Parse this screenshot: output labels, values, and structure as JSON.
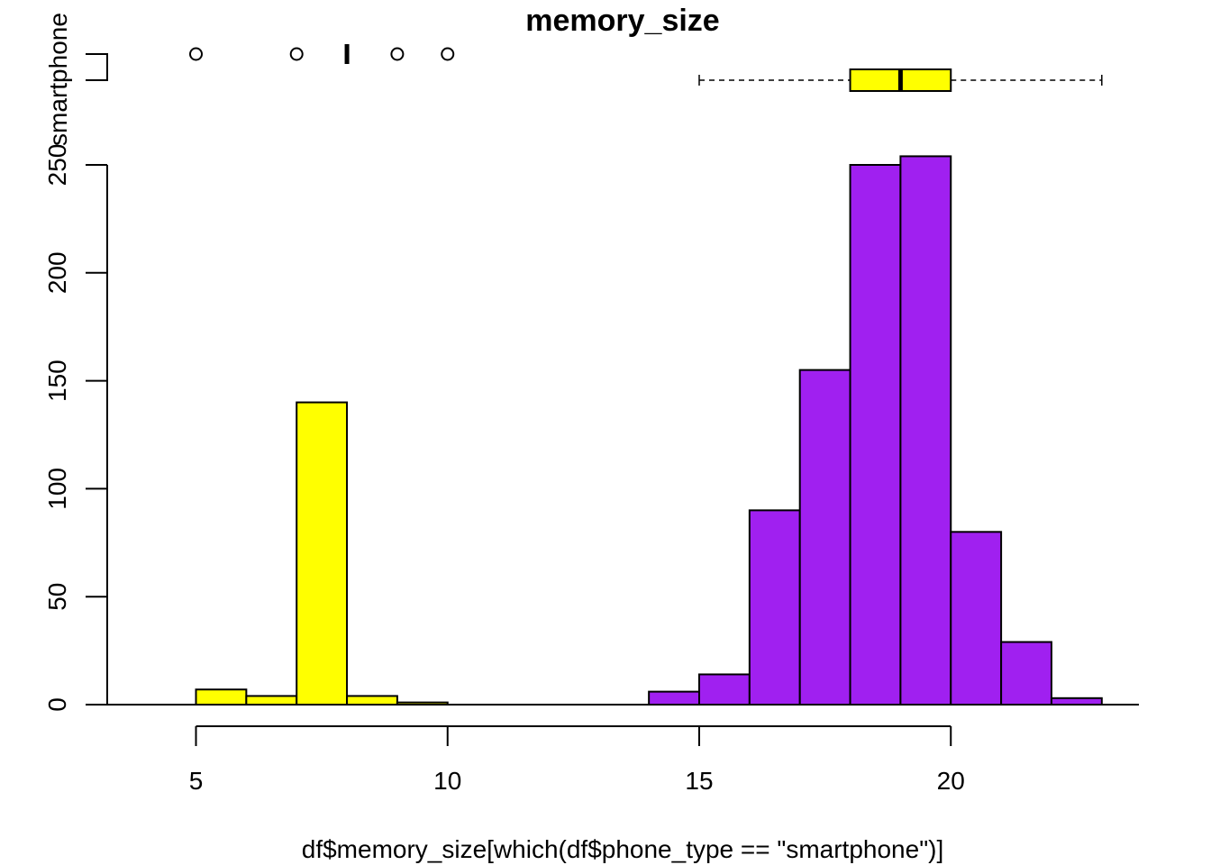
{
  "chart_data": {
    "type": "histogram",
    "title": "memory_size",
    "xlabel": "df$memory_size[which(df$phone_type == \"smartphone\")]",
    "ylabel": "",
    "xlim": [
      5,
      23
    ],
    "ylim": [
      0,
      250
    ],
    "x_ticks": [
      5,
      10,
      15,
      20
    ],
    "y_ticks": [
      0,
      50,
      100,
      150,
      200,
      250
    ],
    "group_label": "smartphone",
    "grid": false,
    "colors": {
      "low_group": "#FFFF00",
      "high_group": "#A020F0",
      "outline": "#000000",
      "box_fill": "#FFFF00"
    },
    "series": [
      {
        "color": "#FFFF00",
        "bins": [
          {
            "x0": 5,
            "x1": 6,
            "count": 7
          },
          {
            "x0": 6,
            "x1": 7,
            "count": 4
          },
          {
            "x0": 7,
            "x1": 8,
            "count": 140
          },
          {
            "x0": 8,
            "x1": 9,
            "count": 4
          },
          {
            "x0": 9,
            "x1": 10,
            "count": 1
          }
        ]
      },
      {
        "color": "#A020F0",
        "bins": [
          {
            "x0": 14,
            "x1": 15,
            "count": 6
          },
          {
            "x0": 15,
            "x1": 16,
            "count": 14
          },
          {
            "x0": 16,
            "x1": 17,
            "count": 90
          },
          {
            "x0": 17,
            "x1": 18,
            "count": 155
          },
          {
            "x0": 18,
            "x1": 19,
            "count": 250
          },
          {
            "x0": 19,
            "x1": 20,
            "count": 254
          },
          {
            "x0": 20,
            "x1": 21,
            "count": 80
          },
          {
            "x0": 21,
            "x1": 22,
            "count": 29
          },
          {
            "x0": 22,
            "x1": 23,
            "count": 3
          }
        ]
      }
    ],
    "boxplots": [
      {
        "median": 8,
        "outliers": [
          5,
          7,
          9,
          10
        ]
      },
      {
        "whisker_low": 15,
        "q1": 18,
        "median": 19,
        "q3": 20,
        "whisker_high": 23
      }
    ]
  }
}
